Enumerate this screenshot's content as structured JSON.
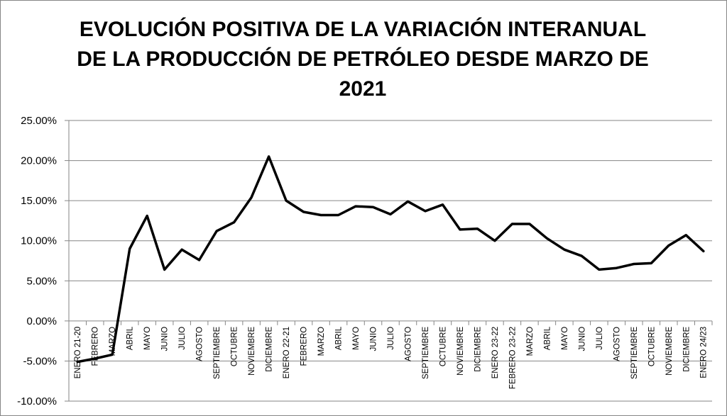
{
  "chart_data": {
    "type": "line",
    "title_lines": [
      "EVOLUCIÓN POSITIVA DE LA VARIACIÓN INTERANUAL",
      "DE LA PRODUCCIÓN DE PETRÓLEO DESDE MARZO DE",
      "2021"
    ],
    "xlabel": "",
    "ylabel": "",
    "ylim": [
      -10,
      25
    ],
    "y_ticks": [
      "25.00%",
      "20.00%",
      "15.00%",
      "10.00%",
      "5.00%",
      "0.00%",
      "-5.00%",
      "-10.00%"
    ],
    "grid": "horizontal",
    "line_color": "#000000",
    "categories": [
      "ENERO 21-20",
      "FEBRERO",
      "MARZO",
      "ABRIL",
      "MAYO",
      "JUNIO",
      "JULIO",
      "AGOSTO",
      "SEPTIEMBRE",
      "OCTUBRE",
      "NOVIEMBRE",
      "DICIEMBRE",
      "ENERO 22-21",
      "FEBRERO",
      "MARZO",
      "ABRIL",
      "MAYO",
      "JUNIO",
      "JULIO",
      "AGOSTO",
      "SEPTIEMBRE",
      "OCTUBRE",
      "NOVIEMBRE",
      "DICIEMBRE",
      "ENERO 23-22",
      "FEBRERO 23-22",
      "MARZO",
      "ABRIL",
      "MAYO",
      "JUNIO",
      "JULIO",
      "AGOSTO",
      "SEPTIEMBRE",
      "OCTUBRE",
      "NOVIEMBRE",
      "DICIEMBRE",
      "ENERO 24/23"
    ],
    "values": [
      -5.1,
      -4.7,
      -4.2,
      9.0,
      13.1,
      6.4,
      8.9,
      7.6,
      11.2,
      12.3,
      15.4,
      20.5,
      15.0,
      13.6,
      13.2,
      13.2,
      14.3,
      14.2,
      13.3,
      14.9,
      13.7,
      14.5,
      11.4,
      11.5,
      10.0,
      12.1,
      12.1,
      10.3,
      8.9,
      8.1,
      6.4,
      6.6,
      7.1,
      7.2,
      9.4,
      10.7,
      8.7
    ]
  }
}
